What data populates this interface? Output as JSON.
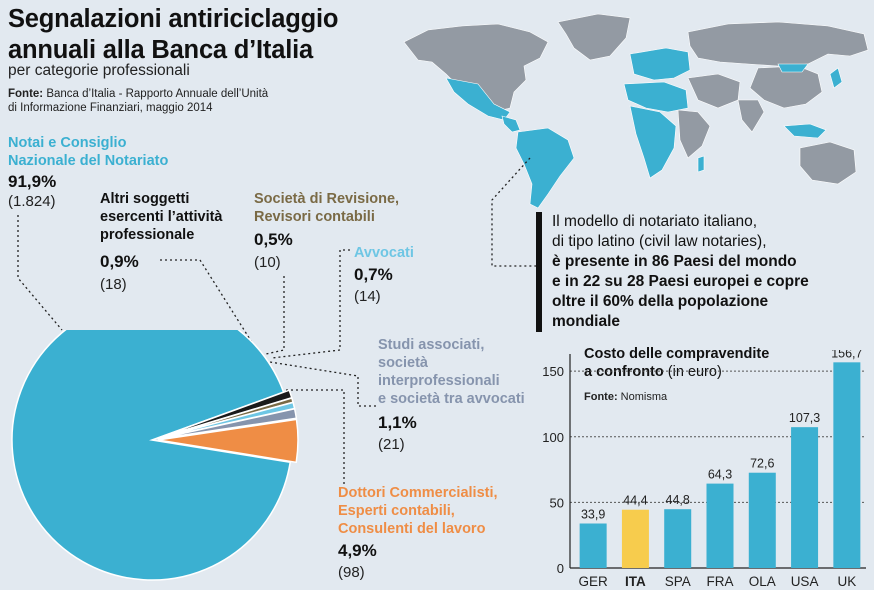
{
  "title_line1": "Segnalazioni antiriciclaggio",
  "title_line2": "annuali alla Banca d’Italia",
  "subtitle": "per categorie professionali",
  "source_label": "Fonte:",
  "source_line1": " Banca d’Italia - Rapporto Annuale dell’Unità",
  "source_line2": "di Informazione Finanziari, maggio 2014",
  "pie": {
    "notai": {
      "l1": "Notai e Consiglio",
      "l2": "Nazionale del Notariato",
      "pct": "91,9%",
      "count": "(1.824)",
      "color": "#3bb0d1"
    },
    "altri": {
      "l1": "Altri soggetti",
      "l2": "esercenti l’attività",
      "l3": "professionale",
      "pct": "0,9%",
      "count": "(18)",
      "color": "#1a1a1a"
    },
    "revisione": {
      "l1": "Società di Revisione,",
      "l2": "Revisori contabili",
      "pct": "0,5%",
      "count": "(10)",
      "color": "#7a6a45"
    },
    "avvocati": {
      "l1": "Avvocati",
      "pct": "0,7%",
      "count": "(14)",
      "color": "#6ec6e4"
    },
    "studi": {
      "l1": "Studi associati,",
      "l2": "società",
      "l3": "interprofessionali",
      "l4": "e società tra avvocati",
      "pct": "1,1%",
      "count": "(21)",
      "color": "#8694ad"
    },
    "dottori": {
      "l1": "Dottori Commercialisti,",
      "l2": "Esperti contabili,",
      "l3": "Consulenti del lavoro",
      "pct": "4,9%",
      "count": "(98)",
      "color": "#ef8d45"
    }
  },
  "callout": {
    "l1": "Il modello di notariato italiano,",
    "l2": "di tipo latino (civil law notaries),",
    "l3": "è presente in 86 Paesi del mondo",
    "l4": "e in 22 su 28 Paesi europei e copre",
    "l5": "oltre il 60% della popolazione",
    "l6": "mondiale"
  },
  "bar_chart": {
    "title_l1": "Costo delle compravendite",
    "title_l2": "a confronto",
    "title_unit": " (in euro)",
    "source_label": "Fonte:",
    "source": " Nomisma"
  },
  "chart_data": [
    {
      "type": "pie",
      "title": "Segnalazioni antiriciclaggio annuali alla Banca d’Italia",
      "subtitle": "per categorie professionali",
      "categories": [
        "Notai e Consiglio Nazionale del Notariato",
        "Altri soggetti esercenti l’attività professionale",
        "Società di Revisione, Revisori contabili",
        "Avvocati",
        "Studi associati, società interprofessionali e società tra avvocati",
        "Dottori Commercialisti, Esperti contabili, Consulenti del lavoro"
      ],
      "values": [
        91.9,
        0.9,
        0.5,
        0.7,
        1.1,
        4.9
      ],
      "counts": [
        1824,
        18,
        10,
        14,
        21,
        98
      ],
      "colors": [
        "#3bb0d1",
        "#1a1a1a",
        "#7a6a45",
        "#6ec6e4",
        "#8694ad",
        "#ef8d45"
      ]
    },
    {
      "type": "bar",
      "title": "Costo delle compravendite a confronto (in euro)",
      "categories": [
        "GER",
        "ITA",
        "SPA",
        "FRA",
        "OLA",
        "USA",
        "UK"
      ],
      "values": [
        33.9,
        44.4,
        44.8,
        64.3,
        72.6,
        107.3,
        156.7
      ],
      "value_labels": [
        "33,9",
        "44,4",
        "44,8",
        "64,3",
        "72,6",
        "107,3",
        "156,7"
      ],
      "highlight": "ITA",
      "ylim": [
        0,
        160
      ],
      "yticks": [
        0,
        50,
        100,
        150
      ],
      "grid": true,
      "bar_color": "#3bb0d1",
      "highlight_color": "#f7cc4d"
    }
  ]
}
